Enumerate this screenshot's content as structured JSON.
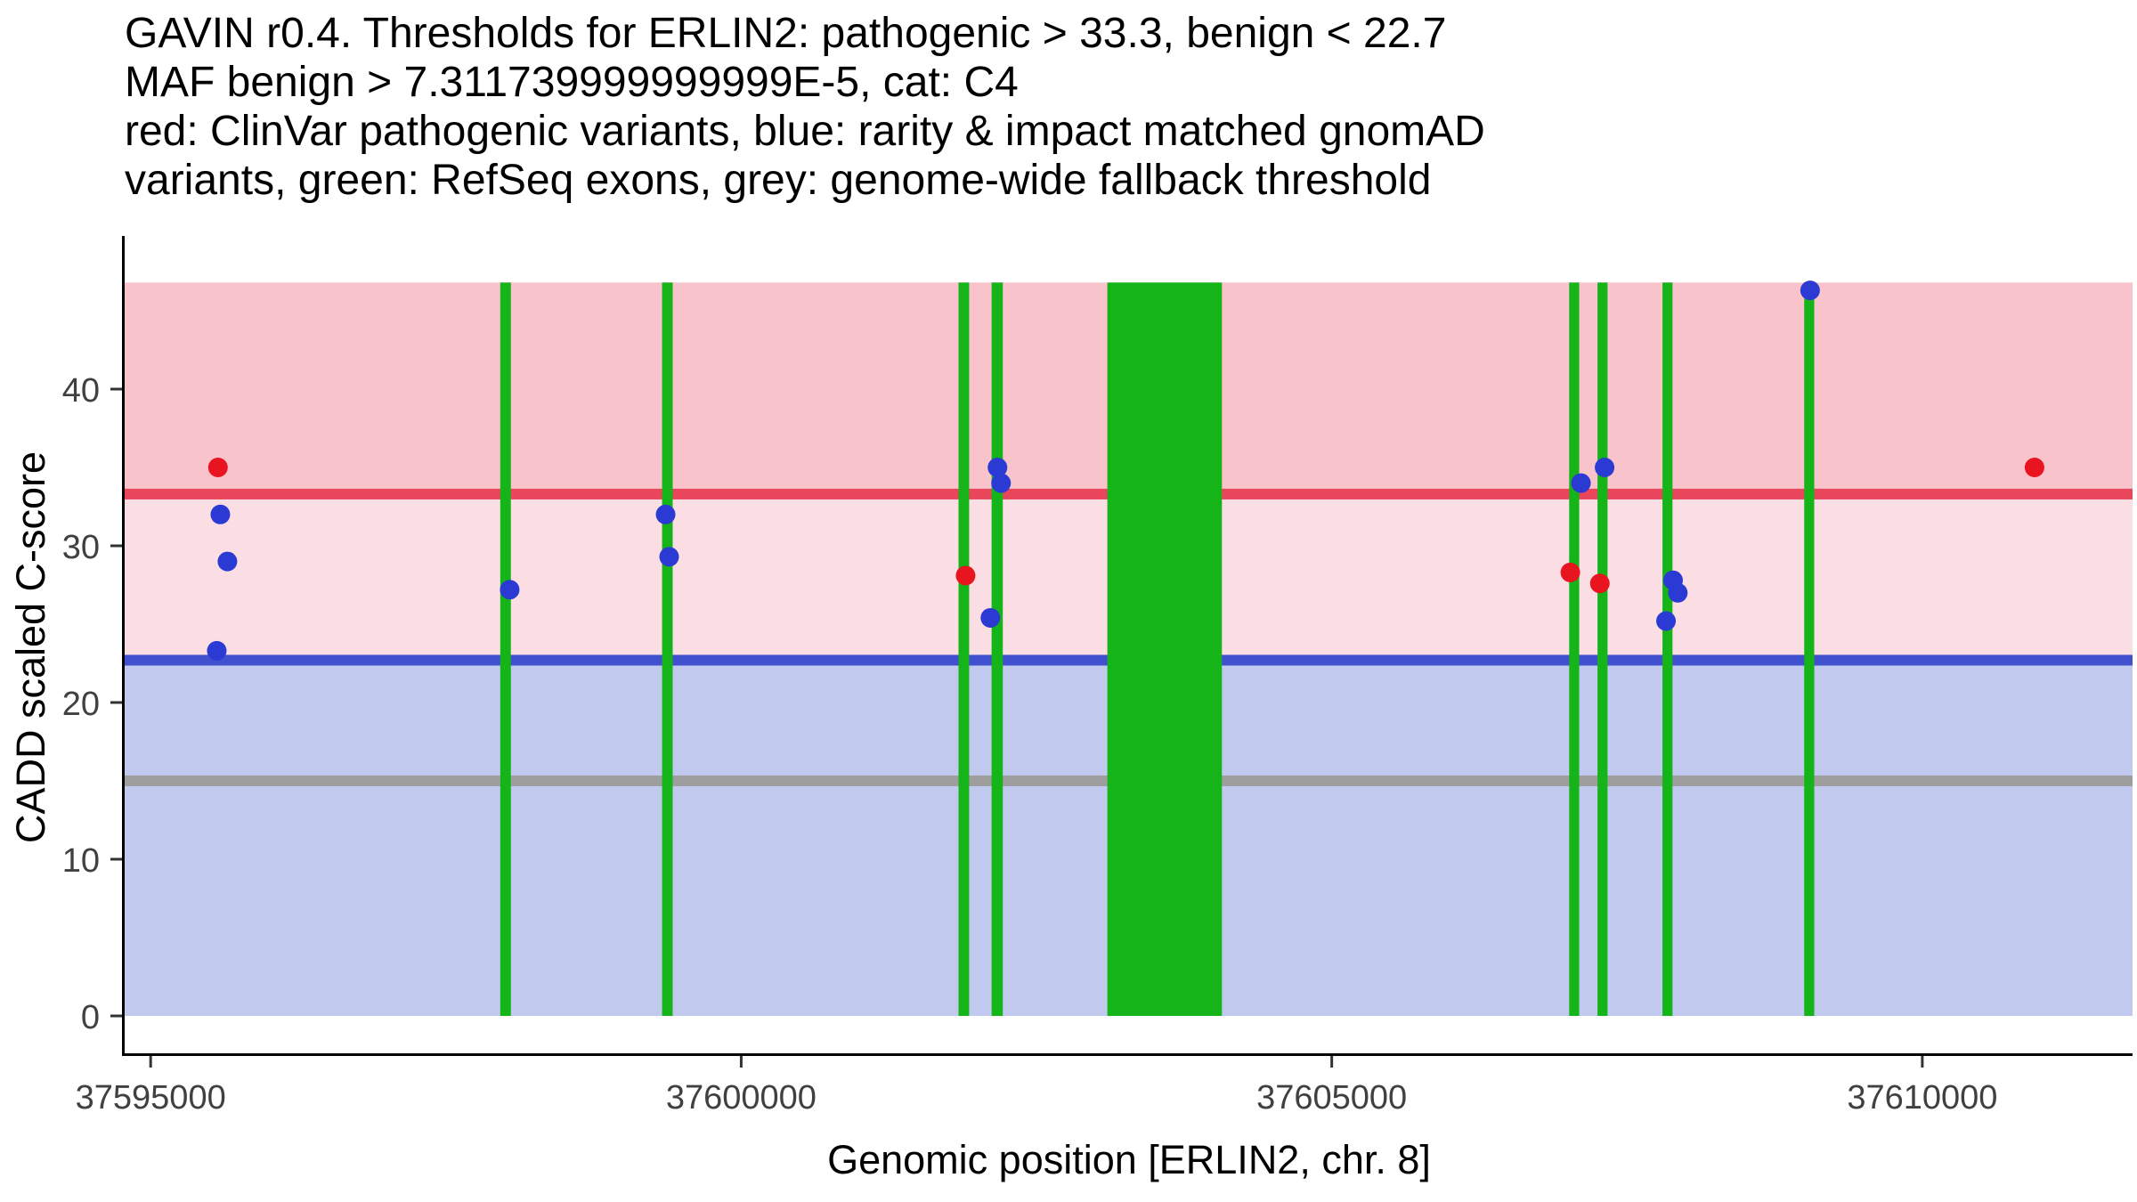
{
  "chart_data": {
    "type": "scatter",
    "title_lines": [
      "GAVIN r0.4. Thresholds for ERLIN2: pathogenic > 33.3, benign < 22.7",
      "MAF benign > 7.311739999999999E-5, cat: C4",
      "red: ClinVar pathogenic variants, blue: rarity & impact matched gnomAD",
      "variants, green: RefSeq exons, grey: genome-wide fallback threshold"
    ],
    "xlabel": "Genomic position [ERLIN2, chr. 8]",
    "ylabel": "CADD scaled C-score",
    "thresholds": {
      "pathogenic": 33.3,
      "benign": 22.7,
      "fallback": 15
    },
    "maf_benign_threshold": "7.311739999999999E-5",
    "category": "C4",
    "xlim": [
      37594780,
      37611780
    ],
    "ylim": [
      0,
      46.8
    ],
    "x_ticks": [
      37595000,
      37600000,
      37605000,
      37610000
    ],
    "y_ticks": [
      0,
      10,
      20,
      30,
      40
    ],
    "legend": [
      {
        "label": "ClinVar pathogenic variants",
        "color": "red"
      },
      {
        "label": "rarity & impact matched gnomAD variants",
        "color": "blue"
      },
      {
        "label": "RefSeq exons",
        "color": "green"
      },
      {
        "label": "genome-wide fallback threshold",
        "color": "grey"
      }
    ],
    "colors": {
      "region_pathogenic": "#f8c3ca",
      "region_vous": "#fbdee3",
      "region_benign": "#c2c9ef",
      "line_pathogenic": "#e9455b",
      "line_benign": "#4150cf",
      "line_fallback": "#9e9e9e",
      "exon": "#15b419",
      "axis": "#000000",
      "tick": "#333333"
    },
    "exons": [
      {
        "start": 37597960,
        "end": 37598050
      },
      {
        "start": 37599330,
        "end": 37599420
      },
      {
        "start": 37601840,
        "end": 37601930
      },
      {
        "start": 37602120,
        "end": 37602215
      },
      {
        "start": 37603100,
        "end": 37604070
      },
      {
        "start": 37607010,
        "end": 37607095
      },
      {
        "start": 37607250,
        "end": 37607335
      },
      {
        "start": 37607800,
        "end": 37607885
      },
      {
        "start": 37609000,
        "end": 37609085
      }
    ],
    "series": [
      {
        "key": "clinvar-pathogenic",
        "name": "ClinVar pathogenic variants",
        "color": "#e8141f",
        "points": [
          {
            "x": 37595570,
            "y": 35
          },
          {
            "x": 37601900,
            "y": 28.1
          },
          {
            "x": 37607020,
            "y": 28.3
          },
          {
            "x": 37607270,
            "y": 27.6
          },
          {
            "x": 37610950,
            "y": 35
          }
        ]
      },
      {
        "key": "gnomad-matched",
        "name": "rarity & impact matched gnomAD variants",
        "color": "#2a3ad2",
        "points": [
          {
            "x": 37595560,
            "y": 23.3
          },
          {
            "x": 37595590,
            "y": 32
          },
          {
            "x": 37595650,
            "y": 29
          },
          {
            "x": 37598040,
            "y": 27.2
          },
          {
            "x": 37599360,
            "y": 32
          },
          {
            "x": 37599390,
            "y": 29.3
          },
          {
            "x": 37602110,
            "y": 25.4
          },
          {
            "x": 37602170,
            "y": 35
          },
          {
            "x": 37602200,
            "y": 34
          },
          {
            "x": 37607110,
            "y": 34
          },
          {
            "x": 37607310,
            "y": 35
          },
          {
            "x": 37607830,
            "y": 25.2
          },
          {
            "x": 37607890,
            "y": 27.8
          },
          {
            "x": 37607930,
            "y": 27
          },
          {
            "x": 37609050,
            "y": 46.3
          }
        ]
      }
    ]
  }
}
